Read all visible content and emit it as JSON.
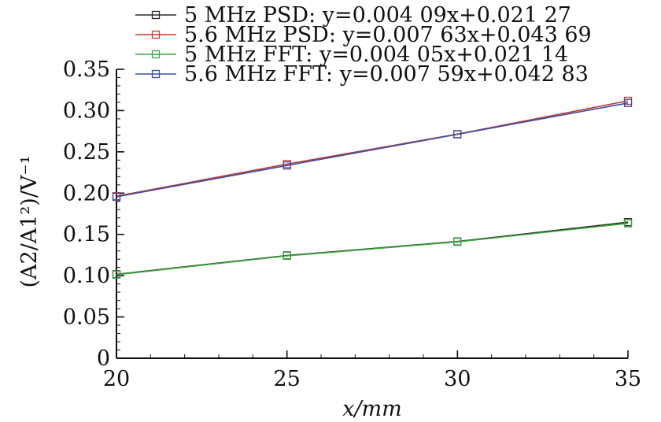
{
  "chart_data": {
    "type": "line",
    "title": "",
    "xlabel": "x/mm",
    "ylabel": "(A2/A1²)/V⁻¹",
    "xlim": [
      20,
      35
    ],
    "ylim": [
      0,
      0.35
    ],
    "x_ticks": [
      "20",
      "25",
      "30",
      "35"
    ],
    "y_ticks": [
      "0",
      "0.05",
      "0.10",
      "0.15",
      "0.20",
      "0.25",
      "0.30",
      "0.35"
    ],
    "grid": false,
    "legend_position": "top-left",
    "series": [
      {
        "name": "5 MHz PSD: y=0.004 09x+0.021 27",
        "color": "#2b2b2b",
        "marker": "square",
        "x": [
          20,
          25,
          30,
          35
        ],
        "y": [
          0.1017,
          0.1245,
          0.1414,
          0.1648
        ]
      },
      {
        "name": "5.6 MHz PSD: y=0.007 63x+0.043 69",
        "color": "#c23a32",
        "marker": "square",
        "x": [
          20,
          25,
          30,
          35
        ],
        "y": [
          0.1963,
          0.2352,
          0.2715,
          0.3118
        ]
      },
      {
        "name": "5 MHz FFT: y=0.004 05x+0.021 14",
        "color": "#3aa83a",
        "marker": "square",
        "x": [
          20,
          25,
          30,
          35
        ],
        "y": [
          0.1012,
          0.124,
          0.141,
          0.1634
        ]
      },
      {
        "name": "5.6 MHz FFT: y=0.007 59x+0.042 83",
        "color": "#3a4ea8",
        "marker": "square",
        "x": [
          20,
          25,
          30,
          35
        ],
        "y": [
          0.1955,
          0.2335,
          0.2712,
          0.3092
        ]
      }
    ]
  }
}
